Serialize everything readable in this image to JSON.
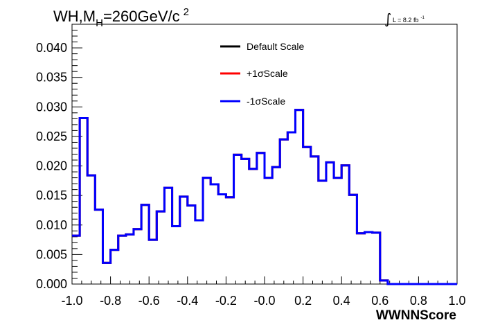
{
  "chart_data": {
    "type": "line",
    "title_main": "WH,M",
    "title_sub": "H",
    "title_rest": "=260GeV/c",
    "title_sup": "2",
    "lumi_integral": "∫",
    "lumi_text": "L = 8.2 fb",
    "lumi_sup": "-1",
    "xlabel": "WWNNScore",
    "ylabel": "",
    "xlim": [
      -1.0,
      1.0
    ],
    "ylim": [
      0.0,
      0.044
    ],
    "x_ticks": [
      "-1.0",
      "-0.8",
      "-0.6",
      "-0.4",
      "-0.2",
      "-0.0",
      "0.2",
      "0.4",
      "0.6",
      "0.8",
      "1.0"
    ],
    "y_ticks": [
      "0.000",
      "0.005",
      "0.010",
      "0.015",
      "0.020",
      "0.025",
      "0.030",
      "0.035",
      "0.040"
    ],
    "legend_position": "top-center",
    "bin_edges": [
      -1.0,
      -0.96,
      -0.92,
      -0.88,
      -0.84,
      -0.8,
      -0.76,
      -0.72,
      -0.68,
      -0.64,
      -0.6,
      -0.56,
      -0.52,
      -0.48,
      -0.44,
      -0.4,
      -0.36,
      -0.32,
      -0.28,
      -0.24,
      -0.2,
      -0.16,
      -0.12,
      -0.08,
      -0.04,
      0.0,
      0.04,
      0.08,
      0.12,
      0.16,
      0.2,
      0.24,
      0.28,
      0.32,
      0.36,
      0.4,
      0.44,
      0.48,
      0.52,
      0.56,
      0.6,
      0.64,
      0.68,
      0.72,
      0.76,
      0.8,
      0.84,
      0.88,
      0.92,
      0.96,
      1.0
    ],
    "series": [
      {
        "name": "Default Scale",
        "color": "#000000",
        "values": [
          0.0082,
          0.0281,
          0.0184,
          0.0126,
          0.0036,
          0.0058,
          0.0082,
          0.0084,
          0.0093,
          0.0134,
          0.0075,
          0.0123,
          0.0163,
          0.0098,
          0.0148,
          0.0133,
          0.0108,
          0.018,
          0.0169,
          0.0152,
          0.0147,
          0.0219,
          0.0212,
          0.0195,
          0.0222,
          0.018,
          0.0198,
          0.0245,
          0.0257,
          0.0295,
          0.0232,
          0.0216,
          0.0175,
          0.0206,
          0.018,
          0.0201,
          0.0151,
          0.0086,
          0.0088,
          0.0087,
          0.0006,
          0.0,
          0.0,
          0.0,
          0.0,
          0.0,
          0.0,
          0.0,
          0.0,
          0.0
        ]
      },
      {
        "name": "+1σScale",
        "color": "#ff0000",
        "values": [
          0.0082,
          0.0281,
          0.0184,
          0.0126,
          0.0036,
          0.0058,
          0.0082,
          0.0084,
          0.0093,
          0.0134,
          0.0075,
          0.0123,
          0.0163,
          0.0098,
          0.0148,
          0.0133,
          0.0108,
          0.018,
          0.0169,
          0.0152,
          0.0147,
          0.0219,
          0.0212,
          0.0195,
          0.0222,
          0.018,
          0.0198,
          0.0245,
          0.0257,
          0.0295,
          0.0232,
          0.0216,
          0.0175,
          0.0206,
          0.018,
          0.0201,
          0.0151,
          0.0086,
          0.0088,
          0.0087,
          0.0006,
          0.0,
          0.0,
          0.0,
          0.0,
          0.0,
          0.0,
          0.0,
          0.0,
          0.0
        ]
      },
      {
        "name": "-1σScale",
        "color": "#0000ff",
        "values": [
          0.0082,
          0.0281,
          0.0184,
          0.0126,
          0.0036,
          0.0058,
          0.0082,
          0.0084,
          0.0093,
          0.0134,
          0.0075,
          0.0123,
          0.0163,
          0.0098,
          0.0148,
          0.0133,
          0.0108,
          0.018,
          0.0169,
          0.0152,
          0.0147,
          0.0219,
          0.0212,
          0.0195,
          0.0222,
          0.018,
          0.0198,
          0.0245,
          0.0257,
          0.0295,
          0.0232,
          0.0216,
          0.0175,
          0.0206,
          0.018,
          0.0201,
          0.0151,
          0.0086,
          0.0088,
          0.0087,
          0.0006,
          0.0,
          0.0,
          0.0,
          0.0,
          0.0,
          0.0,
          0.0,
          0.0,
          0.0
        ]
      }
    ]
  }
}
